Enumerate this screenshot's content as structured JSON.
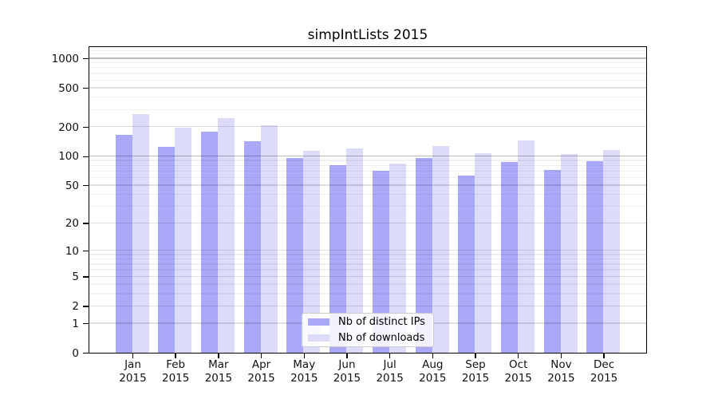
{
  "chart_data": {
    "type": "bar",
    "title": "simpIntLists 2015",
    "categories": [
      "Jan",
      "Feb",
      "Mar",
      "Apr",
      "May",
      "Jun",
      "Jul",
      "Aug",
      "Sep",
      "Oct",
      "Nov",
      "Dec"
    ],
    "category_year": "2015",
    "series": [
      {
        "name": "Nb of distinct IPs",
        "color": "#a9a9f8",
        "values": [
          165,
          124,
          178,
          142,
          96,
          80,
          71,
          95,
          63,
          86,
          72,
          88
        ]
      },
      {
        "name": "Nb of downloads",
        "color": "#dcdcf8",
        "values": [
          270,
          196,
          244,
          206,
          112,
          120,
          84,
          126,
          107,
          144,
          104,
          115
        ]
      }
    ],
    "y_scale": "log10(1+x)",
    "y_ticks": [
      0,
      1,
      2,
      5,
      10,
      20,
      50,
      100,
      200,
      500,
      1000
    ],
    "y_axis_max": 1300,
    "emphasized_gridlines": [
      100,
      1000
    ],
    "xlabel": "",
    "ylabel": "",
    "grid": "horizontal",
    "legend_position": "bottom-center"
  }
}
